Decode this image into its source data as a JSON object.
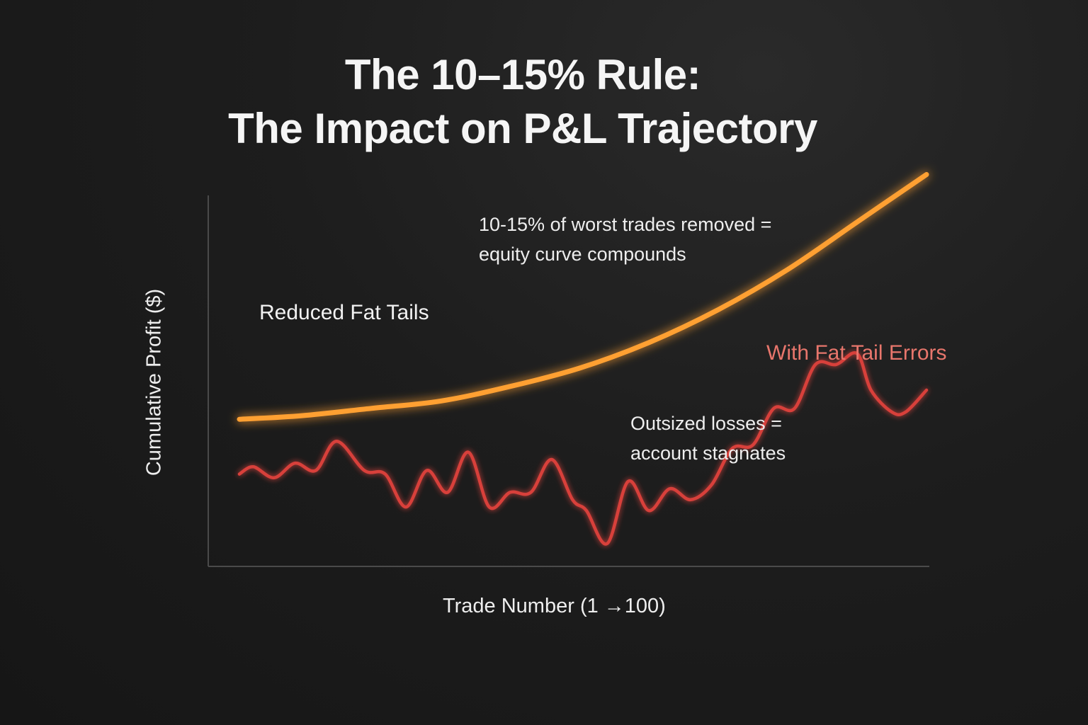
{
  "title": {
    "line1": "The 10–15% Rule:",
    "line2": "The Impact on P&L Trajectory"
  },
  "annotations": {
    "upper_line1": "10-15% of worst trades removed =",
    "upper_line2": "equity curve compounds",
    "lower_line1": "Outsized losses =",
    "lower_line2": "account stagnates"
  },
  "colors": {
    "background": "#1b1b1b",
    "axis": "#4a4a4a",
    "reduced_tails_line": "#ffa033",
    "fat_tail_line": "#d8413a",
    "fat_tail_label": "#e8766c"
  },
  "chart_data": {
    "type": "line",
    "xlabel": "Trade Number (1 →100)",
    "ylabel": "Cumulative Profit ($)",
    "xlim": [
      1,
      100
    ],
    "ylim": [
      0,
      100
    ],
    "grid": false,
    "y_tick_labels": false,
    "series": [
      {
        "name": "Reduced Fat Tails",
        "color": "#ffa033",
        "x": [
          1,
          10,
          20,
          30,
          40,
          50,
          60,
          70,
          80,
          90,
          100
        ],
        "values": [
          36,
          37,
          39,
          41,
          45,
          50,
          57,
          66,
          77,
          90,
          103
        ]
      },
      {
        "name": "With Fat Tail Errors",
        "color": "#d8413a",
        "x": [
          1,
          3,
          6,
          9,
          12,
          15,
          19,
          22,
          25,
          28,
          31,
          34,
          37,
          40,
          43,
          46,
          49,
          51,
          54,
          57,
          60,
          63,
          66,
          69,
          72,
          75,
          78,
          81,
          84,
          87,
          90,
          92,
          95,
          97,
          100
        ],
        "values": [
          21,
          23,
          20,
          24,
          22,
          30,
          22,
          21,
          12,
          22,
          16,
          27,
          12,
          16,
          16,
          25,
          14,
          11,
          2,
          19,
          11,
          17,
          14,
          18,
          28,
          29,
          39,
          39,
          51,
          51,
          54,
          44,
          38,
          38,
          44
        ]
      }
    ]
  }
}
